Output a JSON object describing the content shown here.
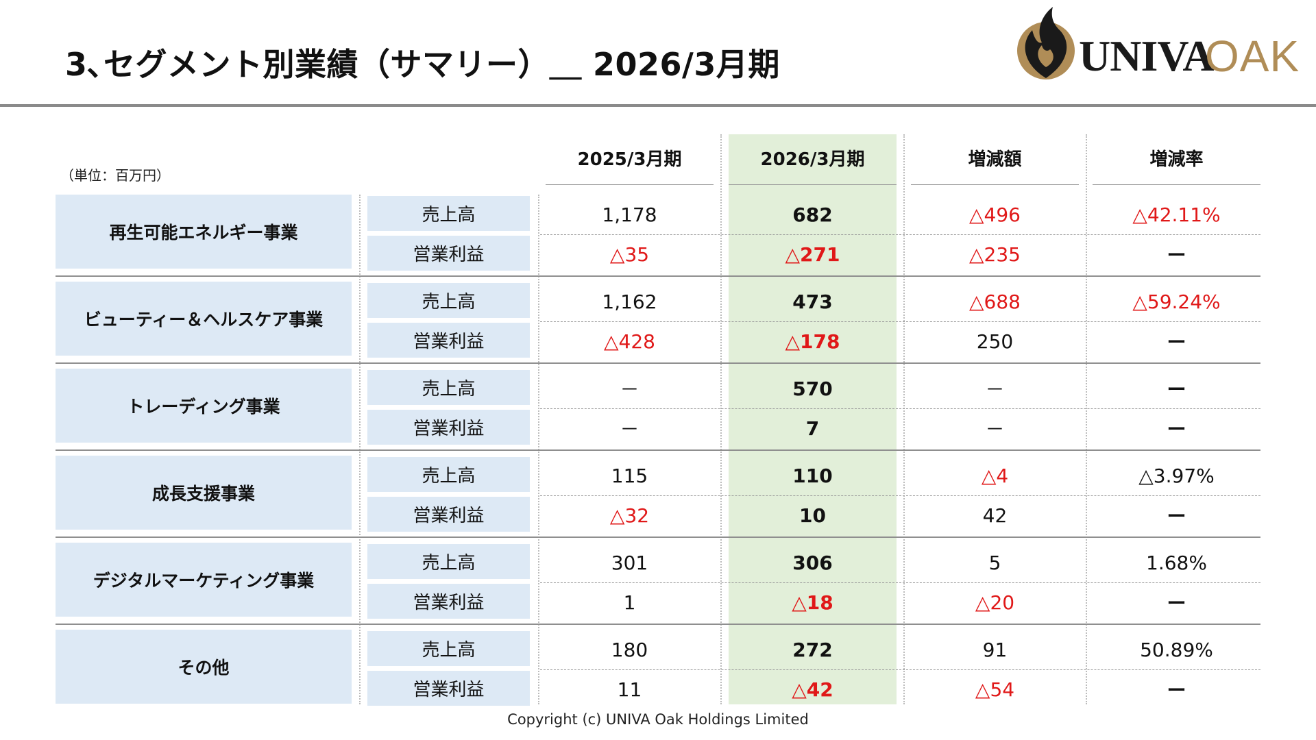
{
  "title": "3､セグメント別業績（サマリー）＿ 2026/3月期",
  "logo": {
    "name_primary": "UNIVA",
    "name_secondary": "OAK",
    "colors": {
      "dark": "#1a1a1a",
      "gold": "#b08d57"
    }
  },
  "unit_label": "（単位：百万円）",
  "columns": [
    "2025/3月期",
    "2026/3月期",
    "増減額",
    "増減率"
  ],
  "colors": {
    "negative": "#e01818",
    "highlight": "#e2efd9",
    "label_bg": "#dde9f5"
  },
  "segments": [
    {
      "name": "再生可能エネルギー事業",
      "rows": [
        {
          "label": "売上高",
          "values": [
            "1,178",
            "682",
            "△496",
            "△42.11%"
          ],
          "negative": [
            false,
            false,
            true,
            true
          ]
        },
        {
          "label": "営業利益",
          "values": [
            "△35",
            "△271",
            "△235",
            "ー"
          ],
          "negative": [
            true,
            true,
            true,
            false
          ]
        }
      ]
    },
    {
      "name": "ビューティー＆ヘルスケア事業",
      "rows": [
        {
          "label": "売上高",
          "values": [
            "1,162",
            "473",
            "△688",
            "△59.24%"
          ],
          "negative": [
            false,
            false,
            true,
            true
          ]
        },
        {
          "label": "営業利益",
          "values": [
            "△428",
            "△178",
            "250",
            "ー"
          ],
          "negative": [
            true,
            true,
            false,
            false
          ]
        }
      ]
    },
    {
      "name": "トレーディング事業",
      "rows": [
        {
          "label": "売上高",
          "values": [
            "－",
            "570",
            "－",
            "ー"
          ],
          "negative": [
            false,
            false,
            false,
            false
          ]
        },
        {
          "label": "営業利益",
          "values": [
            "－",
            "7",
            "－",
            "ー"
          ],
          "negative": [
            false,
            false,
            false,
            false
          ]
        }
      ]
    },
    {
      "name": "成長支援事業",
      "rows": [
        {
          "label": "売上高",
          "values": [
            "115",
            "110",
            "△4",
            "△3.97%"
          ],
          "negative": [
            false,
            false,
            true,
            false
          ]
        },
        {
          "label": "営業利益",
          "values": [
            "△32",
            "10",
            "42",
            "ー"
          ],
          "negative": [
            true,
            false,
            false,
            false
          ]
        }
      ]
    },
    {
      "name": "デジタルマーケティング事業",
      "rows": [
        {
          "label": "売上高",
          "values": [
            "301",
            "306",
            "5",
            "1.68%"
          ],
          "negative": [
            false,
            false,
            false,
            false
          ]
        },
        {
          "label": "営業利益",
          "values": [
            "1",
            "△18",
            "△20",
            "ー"
          ],
          "negative": [
            false,
            true,
            true,
            false
          ]
        }
      ]
    },
    {
      "name": "その他",
      "rows": [
        {
          "label": "売上高",
          "values": [
            "180",
            "272",
            "91",
            "50.89%"
          ],
          "negative": [
            false,
            false,
            false,
            false
          ]
        },
        {
          "label": "営業利益",
          "values": [
            "11",
            "△42",
            "△54",
            "ー"
          ],
          "negative": [
            false,
            true,
            true,
            false
          ]
        }
      ]
    }
  ],
  "footer": "Copyright (c) UNIVA Oak Holdings Limited"
}
